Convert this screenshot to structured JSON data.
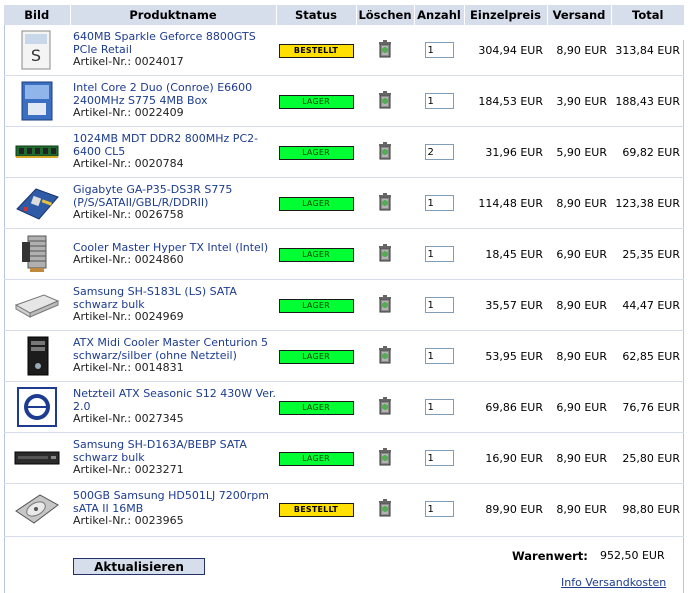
{
  "table": {
    "headers": {
      "image": "Bild",
      "name": "Produktname",
      "status": "Status",
      "delete": "Löschen",
      "qty": "Anzahl",
      "unit_price": "Einzelpreis",
      "shipping": "Versand",
      "total": "Total"
    },
    "rows": [
      {
        "name": "640MB Sparkle Geforce 8800GTS PCIe Retail",
        "artnr": "Artikel-Nr.: 0024017",
        "status": "BESTELLT",
        "qty": "1",
        "unit_price": "304,94 EUR",
        "shipping": "8,90 EUR",
        "total": "313,84 EUR",
        "icon": "graphics-card-box-icon"
      },
      {
        "name": "Intel Core 2 Duo (Conroe) E6600 2400MHz S775 4MB Box",
        "artnr": "Artikel-Nr.: 0022409",
        "status": "LAGER",
        "qty": "1",
        "unit_price": "184,53 EUR",
        "shipping": "3,90 EUR",
        "total": "188,43 EUR",
        "icon": "cpu-box-icon"
      },
      {
        "name": "1024MB MDT DDR2 800MHz PC2-6400 CL5",
        "artnr": "Artikel-Nr.: 0020784",
        "status": "LAGER",
        "qty": "2",
        "unit_price": "31,96 EUR",
        "shipping": "5,90 EUR",
        "total": "69,82 EUR",
        "icon": "ram-module-icon"
      },
      {
        "name": "Gigabyte GA-P35-DS3R S775 (P/S/SATAII/GBL/R/DDRII)",
        "artnr": "Artikel-Nr.: 0026758",
        "status": "LAGER",
        "qty": "1",
        "unit_price": "114,48 EUR",
        "shipping": "8,90 EUR",
        "total": "123,38 EUR",
        "icon": "motherboard-icon"
      },
      {
        "name": "Cooler Master Hyper TX Intel (Intel)",
        "artnr": "Artikel-Nr.: 0024860",
        "status": "LAGER",
        "qty": "1",
        "unit_price": "18,45 EUR",
        "shipping": "6,90 EUR",
        "total": "25,35 EUR",
        "icon": "cpu-cooler-icon"
      },
      {
        "name": "Samsung SH-S183L (LS) SATA schwarz bulk",
        "artnr": "Artikel-Nr.: 0024969",
        "status": "LAGER",
        "qty": "1",
        "unit_price": "35,57 EUR",
        "shipping": "8,90 EUR",
        "total": "44,47 EUR",
        "icon": "optical-drive-icon"
      },
      {
        "name": "ATX Midi Cooler Master Centurion 5 schwarz/silber (ohne Netzteil)",
        "artnr": "Artikel-Nr.: 0014831",
        "status": "LAGER",
        "qty": "1",
        "unit_price": "53,95 EUR",
        "shipping": "8,90 EUR",
        "total": "62,85 EUR",
        "icon": "pc-case-icon"
      },
      {
        "name": "Netzteil ATX Seasonic S12 430W Ver. 2.0",
        "artnr": "Artikel-Nr.: 0027345",
        "status": "LAGER",
        "qty": "1",
        "unit_price": "69,86 EUR",
        "shipping": "6,90 EUR",
        "total": "76,76 EUR",
        "icon": "power-supply-icon"
      },
      {
        "name": "Samsung SH-D163A/BEBP SATA schwarz bulk",
        "artnr": "Artikel-Nr.: 0023271",
        "status": "LAGER",
        "qty": "1",
        "unit_price": "16,90 EUR",
        "shipping": "8,90 EUR",
        "total": "25,80 EUR",
        "icon": "dvd-drive-icon"
      },
      {
        "name": "500GB Samsung HD501LJ 7200rpm sATA II 16MB",
        "artnr": "Artikel-Nr.: 0023965",
        "status": "BESTELLT",
        "qty": "1",
        "unit_price": "89,90 EUR",
        "shipping": "8,90 EUR",
        "total": "98,80 EUR",
        "icon": "hard-disk-icon"
      }
    ]
  },
  "summary": {
    "warenwert_label": "Warenwert:",
    "warenwert_value": "952,50 EUR"
  },
  "actions": {
    "update_label": "Aktualisieren",
    "info_link": "Info Versandkosten"
  },
  "colors": {
    "header_bg": "#d6deec",
    "link": "#1d3c8f",
    "lager": "#00ff33",
    "bestellt": "#ffe000"
  }
}
